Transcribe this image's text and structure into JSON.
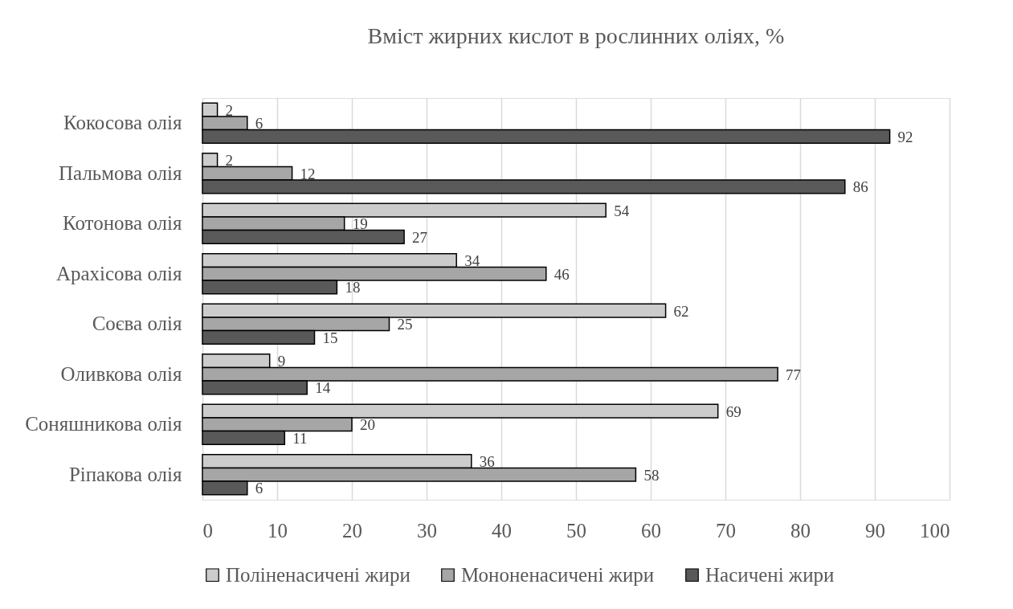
{
  "chart_data": {
    "type": "bar",
    "orientation": "horizontal",
    "title": "Вміст жирних кислот в рослинних оліях, %",
    "categories": [
      "Кокосова олія",
      "Пальмова олія",
      "Котонова олія",
      "Арахісова олія",
      "Соєва олія",
      "Оливкова олія",
      "Соняшникова олія",
      "Ріпакова олія"
    ],
    "series": [
      {
        "name": "Поліненасичені жири",
        "color": "#cccccc",
        "values": [
          2,
          2,
          54,
          34,
          62,
          9,
          69,
          36
        ]
      },
      {
        "name": "Мононенасичені жири",
        "color": "#a6a6a6",
        "values": [
          6,
          12,
          19,
          46,
          25,
          77,
          20,
          58
        ]
      },
      {
        "name": "Насичені жири",
        "color": "#595959",
        "values": [
          92,
          86,
          27,
          18,
          15,
          14,
          11,
          6
        ]
      }
    ],
    "xlim": [
      0,
      100
    ],
    "xticks": [
      0,
      10,
      20,
      30,
      40,
      50,
      60,
      70,
      80,
      90,
      100
    ],
    "grid": "x",
    "legend": "bottom",
    "data_labels": true
  }
}
